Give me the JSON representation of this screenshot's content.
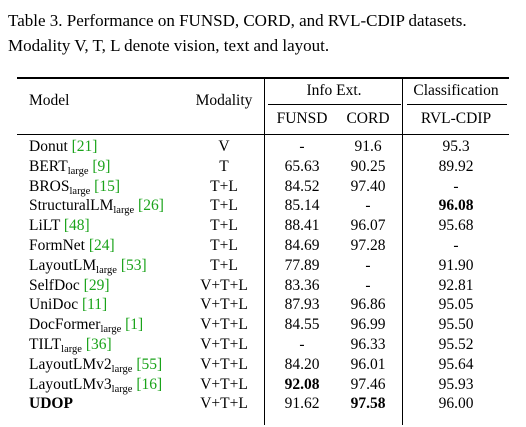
{
  "caption": {
    "line1": "Table 3. Performance on FUNSD, CORD, and RVL-CDIP datasets.",
    "line2": "Modality V, T, L denote vision, text and layout."
  },
  "header": {
    "model": "Model",
    "modality": "Modality",
    "info_ext": "Info Ext.",
    "classification": "Classification",
    "funsd": "FUNSD",
    "cord": "CORD",
    "rvl": "RVL-CDIP"
  },
  "colors": {
    "citation": "#1aa31a"
  },
  "rows": [
    {
      "name": "Donut",
      "sub": "",
      "cite": "[21]",
      "modality": "V",
      "funsd": "-",
      "cord": "91.6",
      "rvl": "95.3"
    },
    {
      "name": "BERT",
      "sub": "large",
      "cite": "[9]",
      "modality": "T",
      "funsd": "65.63",
      "cord": "90.25",
      "rvl": "89.92"
    },
    {
      "name": "BROS",
      "sub": "large",
      "cite": "[15]",
      "modality": "T+L",
      "funsd": "84.52",
      "cord": "97.40",
      "rvl": "-"
    },
    {
      "name": "StructuralLM",
      "sub": "large",
      "cite": "[26]",
      "modality": "T+L",
      "funsd": "85.14",
      "cord": "-",
      "rvl": "96.08",
      "bold": [
        "rvl"
      ]
    },
    {
      "name": "LiLT",
      "sub": "",
      "cite": "[48]",
      "modality": "T+L",
      "funsd": "88.41",
      "cord": "96.07",
      "rvl": "95.68"
    },
    {
      "name": "FormNet",
      "sub": "",
      "cite": "[24]",
      "modality": "T+L",
      "funsd": "84.69",
      "cord": "97.28",
      "rvl": "-"
    },
    {
      "name": "LayoutLM",
      "sub": "large",
      "cite": "[53]",
      "modality": "T+L",
      "funsd": "77.89",
      "cord": "-",
      "rvl": "91.90"
    },
    {
      "name": "SelfDoc",
      "sub": "",
      "cite": "[29]",
      "modality": "V+T+L",
      "funsd": "83.36",
      "cord": "-",
      "rvl": "92.81"
    },
    {
      "name": "UniDoc",
      "sub": "",
      "cite": "[11]",
      "modality": "V+T+L",
      "funsd": "87.93",
      "cord": "96.86",
      "rvl": "95.05"
    },
    {
      "name": "DocFormer",
      "sub": "large",
      "cite": "[1]",
      "modality": "V+T+L",
      "funsd": "84.55",
      "cord": "96.99",
      "rvl": "95.50"
    },
    {
      "name": "TILT",
      "sub": "large",
      "cite": "[36]",
      "modality": "V+T+L",
      "funsd": "-",
      "cord": "96.33",
      "rvl": "95.52"
    },
    {
      "name": "LayoutLMv2",
      "sub": "large",
      "cite": "[55]",
      "modality": "V+T+L",
      "funsd": "84.20",
      "cord": "96.01",
      "rvl": "95.64"
    },
    {
      "name": "LayoutLMv3",
      "sub": "large",
      "cite": "[16]",
      "modality": "V+T+L",
      "funsd": "92.08",
      "cord": "97.46",
      "rvl": "95.93",
      "bold": [
        "funsd"
      ]
    },
    {
      "name": "UDOP",
      "sub": "",
      "cite": "",
      "modality": "V+T+L",
      "funsd": "91.62",
      "cord": "97.58",
      "rvl": "96.00",
      "bold": [
        "name",
        "cord"
      ]
    }
  ]
}
